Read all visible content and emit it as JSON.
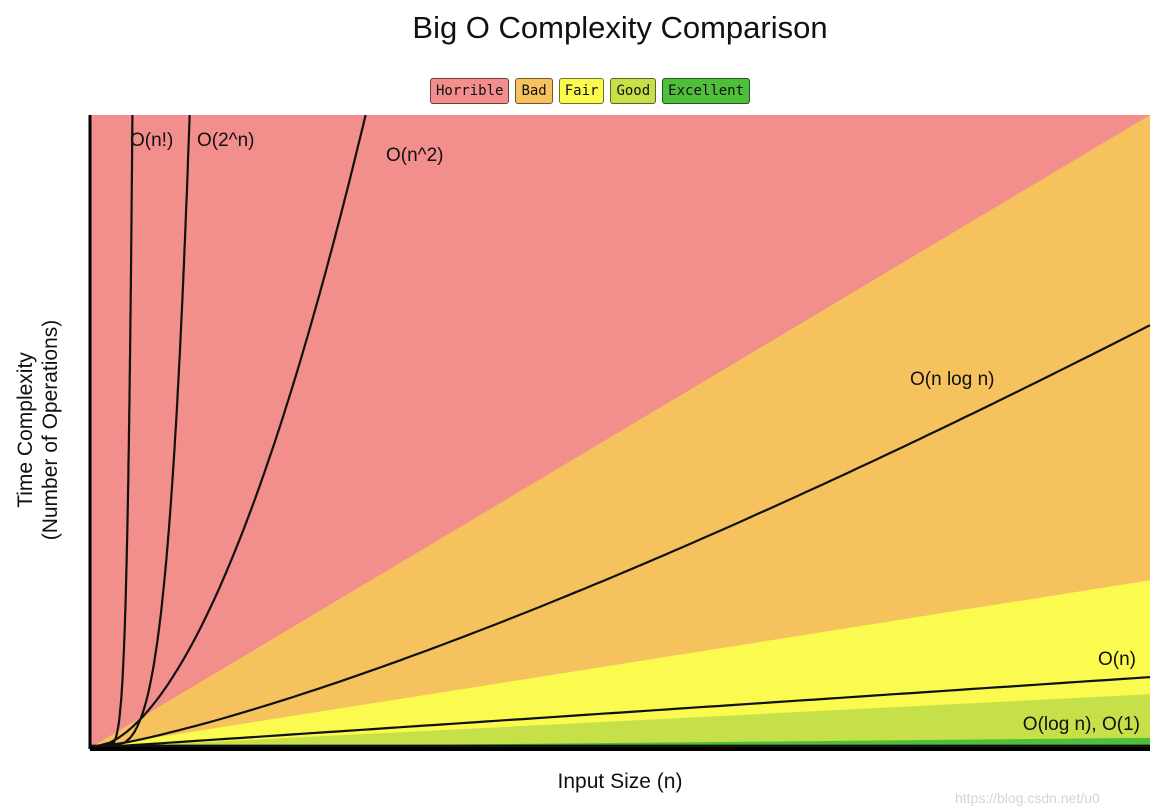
{
  "chart_data": {
    "type": "area",
    "title": "Big O Complexity Comparison",
    "xlabel": "Input Size (n)",
    "ylabel_lines": [
      "Time Complexity",
      "(Number of Operations)"
    ],
    "legend": [
      {
        "label": "Horrible",
        "color": "#f28e8c"
      },
      {
        "label": "Bad",
        "color": "#f6c25e"
      },
      {
        "label": "Fair",
        "color": "#fafa4f"
      },
      {
        "label": "Good",
        "color": "#c6e049"
      },
      {
        "label": "Excellent",
        "color": "#4fbf3a"
      }
    ],
    "legend_position": "top-center",
    "grid": false,
    "xlim": [
      0,
      100
    ],
    "ylim": [
      0,
      100
    ],
    "regions": [
      {
        "name": "Horrible",
        "color": "#f28e8c",
        "upper_end": 100
      },
      {
        "name": "Bad",
        "color": "#f6c25e",
        "upper_end": 100
      },
      {
        "name": "Fair",
        "color": "#fafa4f",
        "upper_end": 26.5
      },
      {
        "name": "Good",
        "color": "#c6e049",
        "upper_end": 8.5
      },
      {
        "name": "Excellent",
        "color": "#4fbf3a",
        "upper_end": 1.6
      }
    ],
    "series": [
      {
        "name": "O(n!)",
        "label": "O(n!)",
        "end_x": 4.0
      },
      {
        "name": "O(2^n)",
        "label": "O(2^n)",
        "end_x": 9.4
      },
      {
        "name": "O(n^2)",
        "label": "O(n^2)",
        "end_x": 26.0
      },
      {
        "name": "O(n log n)",
        "label": "O(n log n)",
        "end_y": 66.8
      },
      {
        "name": "O(n)",
        "label": "O(n)",
        "end_y": 11.2
      },
      {
        "name": "O(log n), O(1)",
        "label": "O(log n), O(1)",
        "end_y": 0.3
      }
    ]
  },
  "watermark": "https://blog.csdn.net/u0"
}
